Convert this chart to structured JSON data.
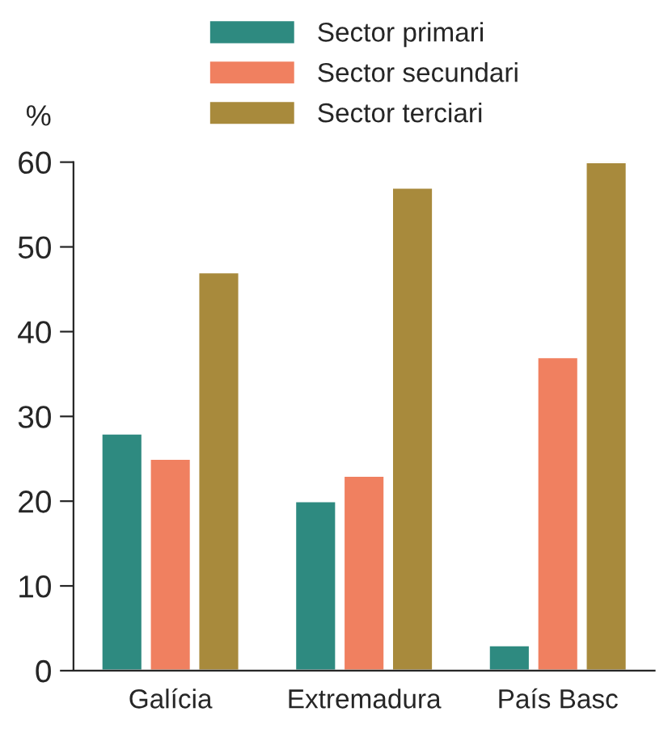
{
  "chart_data": {
    "type": "bar",
    "ylabel": "%",
    "categories": [
      "Galícia",
      "Extremadura",
      "País Basc"
    ],
    "series": [
      {
        "name": "Sector primari",
        "color": "#2e8a80",
        "values": [
          28,
          20,
          3
        ]
      },
      {
        "name": "Sector secundari",
        "color": "#f08060",
        "values": [
          25,
          23,
          37
        ]
      },
      {
        "name": "Sector terciari",
        "color": "#a88a3c",
        "values": [
          47,
          57,
          60
        ]
      }
    ],
    "ylim": [
      0,
      60
    ],
    "yticks": [
      0,
      10,
      20,
      30,
      40,
      50,
      60
    ],
    "grid": false,
    "legend": "top"
  }
}
